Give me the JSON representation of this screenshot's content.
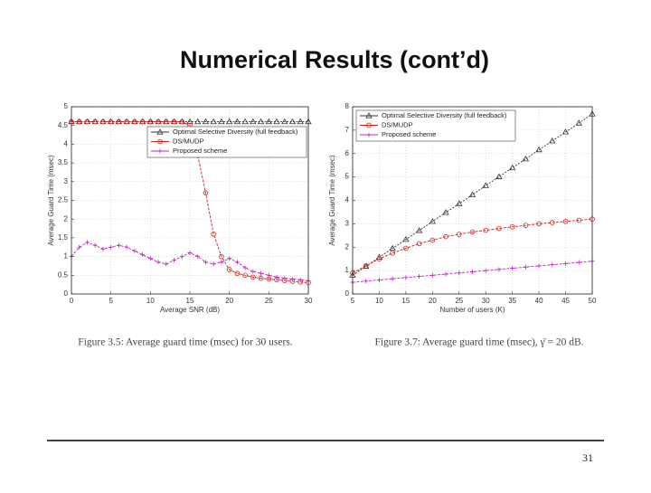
{
  "title": "Numerical Results (cont’d)",
  "captions": [
    "Figure 3.5: Average guard time (msec) for 30 users.",
    "Figure 3.7: Average guard time (msec), γ̄ = 20 dB."
  ],
  "page_number": "31",
  "chart_data": [
    {
      "type": "line",
      "xlabel": "Average SNR (dB)",
      "ylabel": "Average Guard Time (msec)",
      "x": [
        0,
        1,
        2,
        3,
        4,
        5,
        6,
        7,
        8,
        9,
        10,
        11,
        12,
        13,
        14,
        15,
        16,
        17,
        18,
        19,
        20,
        21,
        22,
        23,
        24,
        25,
        26,
        27,
        28,
        29,
        30
      ],
      "xlim": [
        0,
        30
      ],
      "xticks": [
        0,
        5,
        10,
        15,
        20,
        25,
        30
      ],
      "ylim": [
        0,
        5
      ],
      "yticks": [
        0,
        0.5,
        1,
        1.5,
        2,
        2.5,
        3,
        3.5,
        4,
        4.5,
        5
      ],
      "grid": true,
      "legend": "upper right",
      "series": [
        {
          "name": "Optimal Selective Diversity (full feedback)",
          "color": "#333333",
          "marker": "triangle",
          "values": [
            4.6,
            4.6,
            4.6,
            4.6,
            4.6,
            4.6,
            4.6,
            4.6,
            4.6,
            4.6,
            4.6,
            4.6,
            4.6,
            4.6,
            4.6,
            4.6,
            4.6,
            4.6,
            4.6,
            4.6,
            4.6,
            4.6,
            4.6,
            4.6,
            4.6,
            4.6,
            4.6,
            4.6,
            4.6,
            4.6,
            4.6
          ]
        },
        {
          "name": "DS/MUDP",
          "color": "#cc2222",
          "marker": "circle",
          "values": [
            4.6,
            4.6,
            4.6,
            4.6,
            4.6,
            4.6,
            4.6,
            4.6,
            4.6,
            4.6,
            4.6,
            4.6,
            4.6,
            4.6,
            4.6,
            4.5,
            3.7,
            2.7,
            1.6,
            1.0,
            0.65,
            0.55,
            0.5,
            0.45,
            0.42,
            0.4,
            0.38,
            0.36,
            0.34,
            0.32,
            0.3
          ]
        },
        {
          "name": "Proposed scheme",
          "color": "#c020c0",
          "marker": "plus",
          "values": [
            1.0,
            1.25,
            1.38,
            1.3,
            1.2,
            1.25,
            1.3,
            1.25,
            1.15,
            1.05,
            0.95,
            0.85,
            0.8,
            0.9,
            1.0,
            1.1,
            1.0,
            0.85,
            0.8,
            0.85,
            0.95,
            0.85,
            0.7,
            0.6,
            0.55,
            0.5,
            0.45,
            0.42,
            0.4,
            0.38,
            0.35
          ]
        }
      ]
    },
    {
      "type": "line",
      "xlabel": "Number of users (K)",
      "ylabel": "Average Guard Time (msec)",
      "x": [
        5,
        7.5,
        10,
        12.5,
        15,
        17.5,
        20,
        22.5,
        25,
        27.5,
        30,
        32.5,
        35,
        37.5,
        40,
        42.5,
        45,
        47.5,
        50
      ],
      "xlim": [
        5,
        50
      ],
      "xticks": [
        5,
        10,
        15,
        20,
        25,
        30,
        35,
        40,
        45,
        50
      ],
      "ylim": [
        0,
        8
      ],
      "yticks": [
        0,
        1,
        2,
        3,
        4,
        5,
        6,
        7,
        8
      ],
      "grid": true,
      "legend": "upper left",
      "series": [
        {
          "name": "Optimal Selective Diversity (full feedback)",
          "color": "#333333",
          "marker": "triangle",
          "values": [
            0.8,
            1.18,
            1.57,
            1.95,
            2.33,
            2.71,
            3.1,
            3.48,
            3.86,
            4.24,
            4.63,
            5.01,
            5.39,
            5.77,
            6.16,
            6.54,
            6.92,
            7.3,
            7.69
          ]
        },
        {
          "name": "DS/MUDP",
          "color": "#cc2222",
          "marker": "circle",
          "values": [
            0.9,
            1.2,
            1.5,
            1.75,
            1.95,
            2.15,
            2.3,
            2.45,
            2.55,
            2.65,
            2.72,
            2.8,
            2.87,
            2.93,
            3.0,
            3.05,
            3.1,
            3.15,
            3.2
          ]
        },
        {
          "name": "Proposed scheme",
          "color": "#c020c0",
          "marker": "plus",
          "values": [
            0.5,
            0.55,
            0.6,
            0.65,
            0.7,
            0.75,
            0.8,
            0.85,
            0.9,
            0.95,
            1.0,
            1.05,
            1.1,
            1.15,
            1.2,
            1.25,
            1.3,
            1.35,
            1.4
          ]
        }
      ]
    }
  ]
}
